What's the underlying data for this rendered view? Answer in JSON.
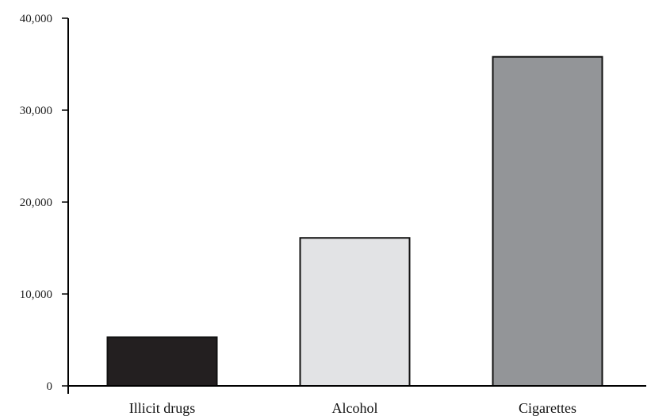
{
  "chart_data": {
    "type": "bar",
    "title": "",
    "xlabel": "",
    "ylabel": "",
    "categories": [
      "Illicit drugs",
      "Alcohol",
      "Cigarettes"
    ],
    "values": [
      5300,
      16100,
      35800
    ],
    "ylim": [
      0,
      40000
    ],
    "yticks": [
      0,
      10000,
      20000,
      30000,
      40000
    ],
    "ytick_labels": [
      "0",
      "10,000",
      "20,000",
      "30,000",
      "40,000"
    ],
    "bar_colors": [
      "#231f20",
      "#e2e3e5",
      "#939598"
    ],
    "grid": false,
    "legend": "none"
  }
}
